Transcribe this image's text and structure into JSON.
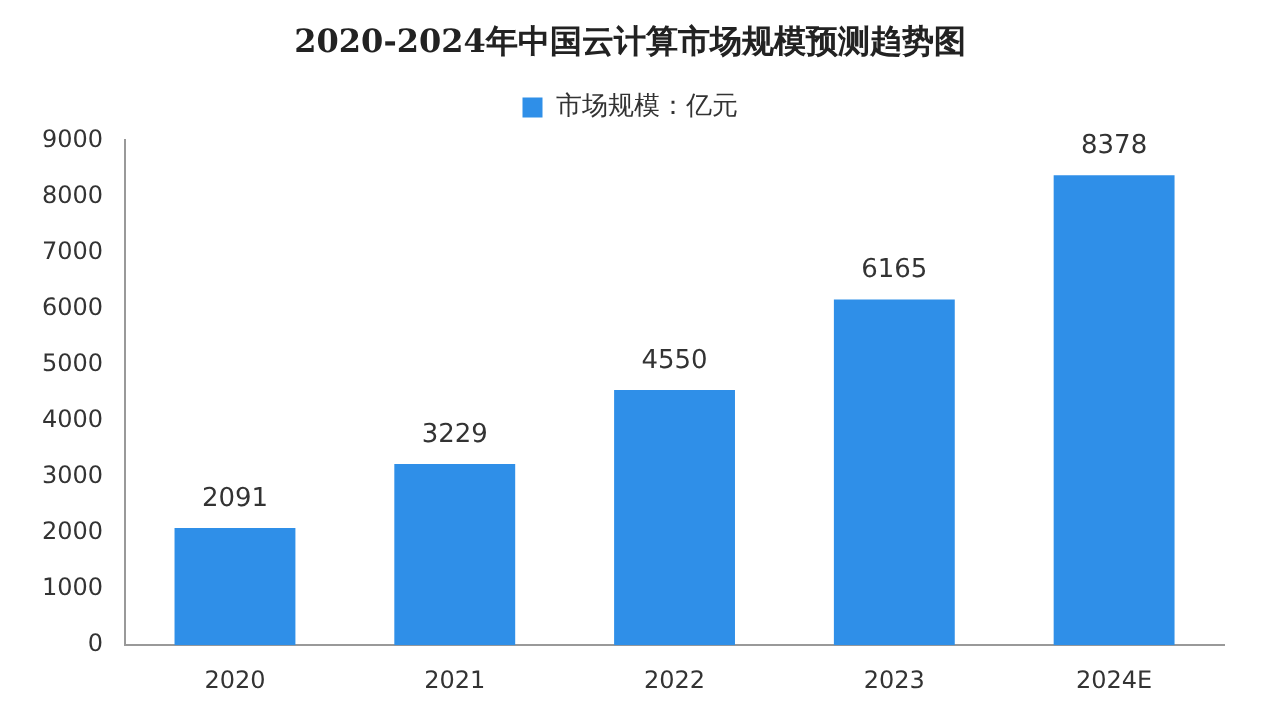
{
  "chart_data": {
    "type": "bar",
    "title": "2020-2024年中国云计算市场规模预测趋势图",
    "categories": [
      "2020",
      "2021",
      "2022",
      "2023",
      "2024E"
    ],
    "series": [
      {
        "name": "市场规模：亿元",
        "color": "#2f8fe8",
        "values": [
          2091,
          3229,
          4550,
          6165,
          8378
        ]
      }
    ],
    "ylim": [
      0,
      9000
    ],
    "yticks": [
      0,
      1000,
      2000,
      3000,
      4000,
      5000,
      6000,
      7000,
      8000,
      9000
    ],
    "grid": false,
    "legend": "top",
    "data_labels": true
  }
}
